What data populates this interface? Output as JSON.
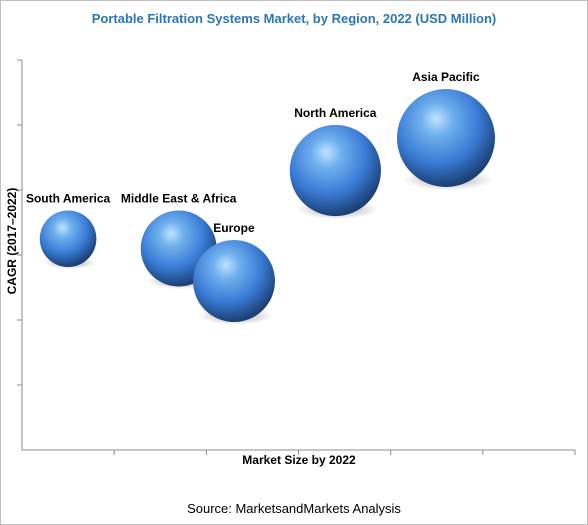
{
  "chart_data": {
    "type": "scatter",
    "subtype": "bubble",
    "title": "Portable Filtration Systems Market, by Region, 2022 (USD Million)",
    "xlabel": "Market Size by 2022",
    "ylabel": "CAGR (2017–2022)",
    "xlim": [
      0,
      6
    ],
    "ylim": [
      0,
      6
    ],
    "x_ticks": 6,
    "y_ticks": 6,
    "grid": false,
    "bubble_color": "#3a7bd5",
    "series": [
      {
        "label": "South America",
        "x": 0.5,
        "y": 3.25,
        "size": 1.0
      },
      {
        "label": "Middle East & Africa",
        "x": 1.7,
        "y": 3.1,
        "size": 1.8
      },
      {
        "label": "Europe",
        "x": 2.3,
        "y": 2.6,
        "size": 2.1
      },
      {
        "label": "North America",
        "x": 3.4,
        "y": 4.3,
        "size": 2.6
      },
      {
        "label": "Asia Pacific",
        "x": 4.6,
        "y": 4.8,
        "size": 3.0
      }
    ]
  },
  "source": "Source: MarketsandMarkets Analysis"
}
